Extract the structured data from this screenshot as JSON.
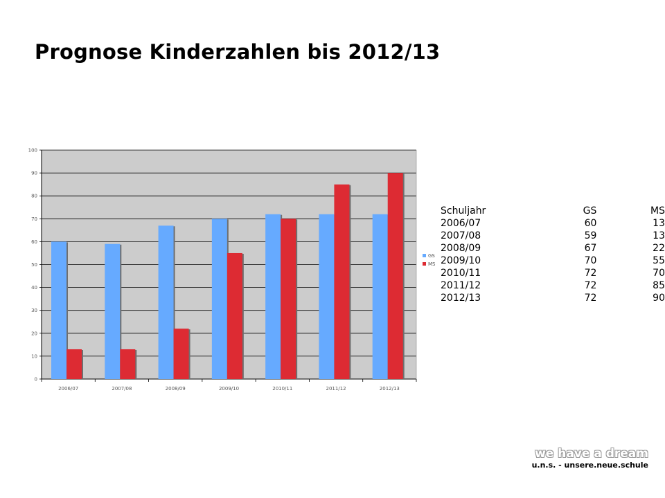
{
  "title": "Prognose Kinderzahlen bis 2012/13",
  "chart_data": {
    "type": "bar",
    "categories": [
      "2006/07",
      "2007/08",
      "2008/09",
      "2009/10",
      "2010/11",
      "2011/12",
      "2012/13"
    ],
    "series": [
      {
        "name": "GS",
        "values": [
          60,
          59,
          67,
          70,
          72,
          72,
          72
        ],
        "color": "#66aaff"
      },
      {
        "name": "MS",
        "values": [
          13,
          13,
          22,
          55,
          70,
          85,
          90
        ],
        "color": "#dd2b33"
      }
    ],
    "ylim": [
      0,
      100
    ],
    "yticks": [
      0,
      10,
      20,
      30,
      40,
      50,
      60,
      70,
      80,
      90,
      100
    ],
    "grid": true,
    "plot_background": "#cccccc",
    "legend": "right"
  },
  "table": {
    "headers": [
      "Schuljahr",
      "GS",
      "MS"
    ],
    "rows": [
      [
        "2006/07",
        "60",
        "13"
      ],
      [
        "2007/08",
        "59",
        "13"
      ],
      [
        "2008/09",
        "67",
        "22"
      ],
      [
        "2009/10",
        "70",
        "55"
      ],
      [
        "2010/11",
        "72",
        "70"
      ],
      [
        "2011/12",
        "72",
        "85"
      ],
      [
        "2012/13",
        "72",
        "90"
      ]
    ]
  },
  "logo": {
    "line1": "we have a dream",
    "line2": "u.n.s. - unsere.neue.schule"
  }
}
